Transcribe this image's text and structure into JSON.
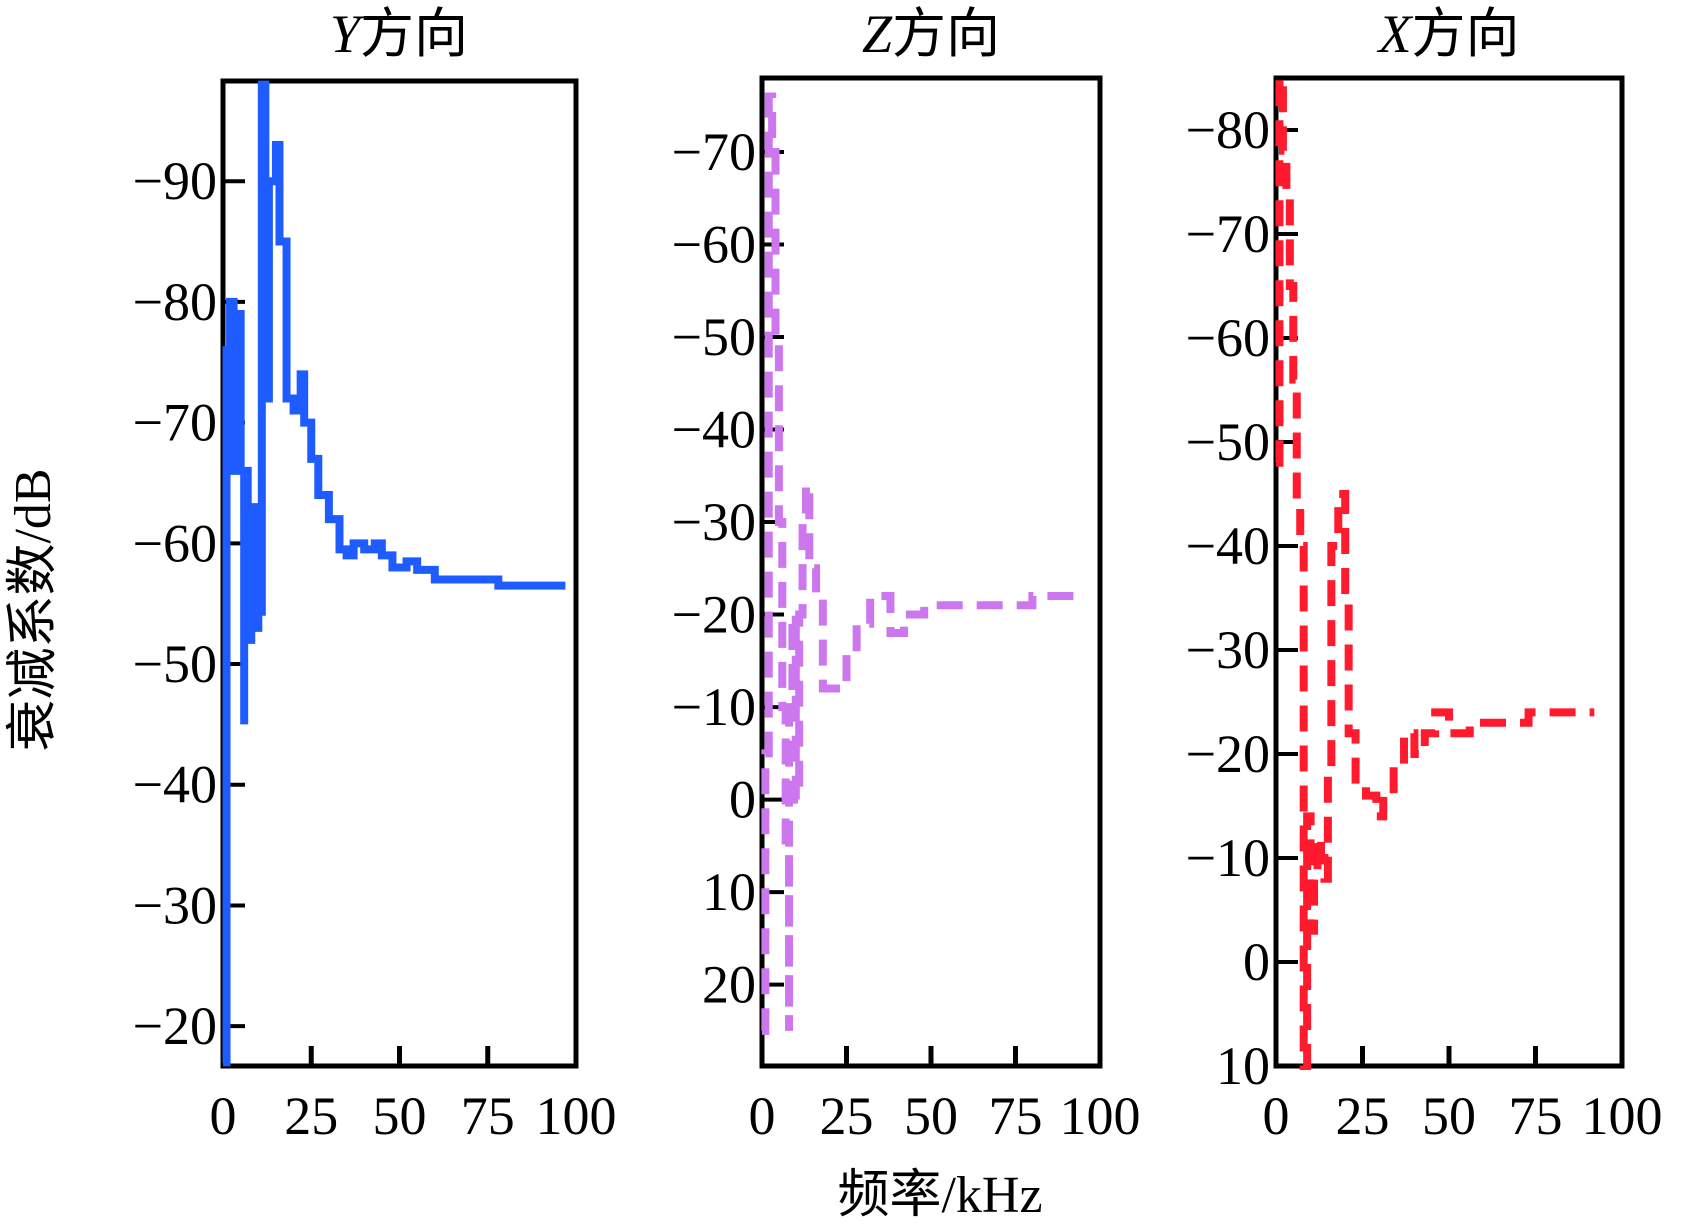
{
  "chart_data": [
    {
      "type": "line",
      "title": "Y方向",
      "title_axis_letter": "Y",
      "title_suffix": "方向",
      "xlabel": "频率/kHz",
      "ylabel": "衰减系数/dB",
      "xlim": [
        0,
        100
      ],
      "ylim": [
        -16.7,
        -98.3
      ],
      "xticks": [
        0,
        25,
        50,
        75,
        100
      ],
      "xtick_labels": [
        "0",
        "25",
        "50",
        "75",
        "100"
      ],
      "yticks": [
        -90,
        -80,
        -70,
        -60,
        -50,
        -40,
        -30,
        -20
      ],
      "ytick_labels": [
        "−90",
        "−80",
        "−70",
        "−60",
        "−50",
        "−40",
        "−30",
        "−20"
      ],
      "color": "#1f5cff",
      "line_style": "solid",
      "x": [
        0,
        1,
        1,
        2,
        3,
        4,
        5,
        6,
        6,
        7,
        8,
        9,
        10,
        11,
        11,
        12,
        13,
        15,
        16,
        17,
        18,
        20,
        22,
        23,
        25,
        27,
        30,
        33,
        35,
        37,
        40,
        43,
        45,
        48,
        52,
        55,
        60,
        75,
        78,
        97
      ],
      "y": [
        -17,
        -24,
        -76,
        -80,
        -66,
        -79,
        -66,
        -45,
        -66,
        -52,
        -63,
        -53,
        -63,
        -54,
        -98,
        -72,
        -90,
        -93,
        -85,
        -85,
        -72,
        -71,
        -74,
        -70,
        -67,
        -64,
        -62,
        -59.5,
        -59,
        -60,
        -59.5,
        -60,
        -59,
        -58,
        -58.5,
        -57.8,
        -57,
        -57,
        -56.5,
        -56.5
      ]
    },
    {
      "type": "line",
      "title": "Z方向",
      "title_axis_letter": "Z",
      "title_suffix": "方向",
      "xlim": [
        0,
        100
      ],
      "ylim": [
        28.8,
        -78
      ],
      "xticks": [
        0,
        25,
        50,
        75,
        100
      ],
      "xtick_labels": [
        "0",
        "25",
        "50",
        "75",
        "100"
      ],
      "yticks": [
        -70,
        -60,
        -50,
        -40,
        -30,
        -20,
        -10,
        0,
        10,
        20
      ],
      "ytick_labels": [
        "−70",
        "−60",
        "−50",
        "−40",
        "−30",
        "−20",
        "−10",
        "0",
        "10",
        "20"
      ],
      "color": "#cc77ee",
      "line_style": "dashed",
      "x": [
        0,
        1,
        2,
        3,
        4,
        5,
        6,
        7,
        8,
        8,
        9,
        10,
        11,
        12,
        13,
        14,
        16,
        18,
        20,
        25,
        28,
        32,
        36,
        38,
        42,
        48,
        60,
        75,
        80,
        95
      ],
      "y": [
        25,
        -5,
        -76,
        -70,
        -50,
        -30,
        -10,
        5,
        25,
        -10,
        -20,
        0,
        -20,
        -30,
        -34,
        -25,
        -22,
        -12,
        -12,
        -16,
        -19,
        -22,
        -22,
        -18,
        -20,
        -21,
        -21,
        -21,
        -22,
        -22
      ]
    },
    {
      "type": "line",
      "title": "X方向",
      "title_axis_letter": "X",
      "title_suffix": "方向",
      "xlim": [
        0,
        100
      ],
      "ylim": [
        10,
        -85
      ],
      "xticks": [
        0,
        25,
        50,
        75,
        100
      ],
      "xtick_labels": [
        "0",
        "25",
        "50",
        "75",
        "100"
      ],
      "yticks": [
        -80,
        -70,
        -60,
        -50,
        -40,
        -30,
        -20,
        -10,
        0,
        10
      ],
      "ytick_labels": [
        "−80",
        "−70",
        "−60",
        "−50",
        "−40",
        "−30",
        "−20",
        "−10",
        "0",
        "10"
      ],
      "color": "#ff1a2e",
      "line_style": "dashed",
      "x": [
        0,
        1,
        2,
        3,
        4,
        5,
        6,
        7,
        8,
        8,
        9,
        10,
        11,
        12,
        13,
        14,
        15,
        16,
        18,
        20,
        21,
        23,
        26,
        29,
        31,
        34,
        37,
        40,
        43,
        46,
        50,
        56,
        73,
        92
      ],
      "y": [
        -48,
        -85,
        -78,
        -74,
        -65,
        -56,
        -44,
        -40,
        -28,
        10,
        -14,
        -3,
        -8,
        -12,
        -10,
        -8,
        -18,
        -40,
        -45,
        -35,
        -22,
        -17,
        -16,
        -14,
        -16,
        -19,
        -22,
        -20,
        -22,
        -24,
        -22,
        -23,
        -24,
        -24
      ]
    }
  ]
}
